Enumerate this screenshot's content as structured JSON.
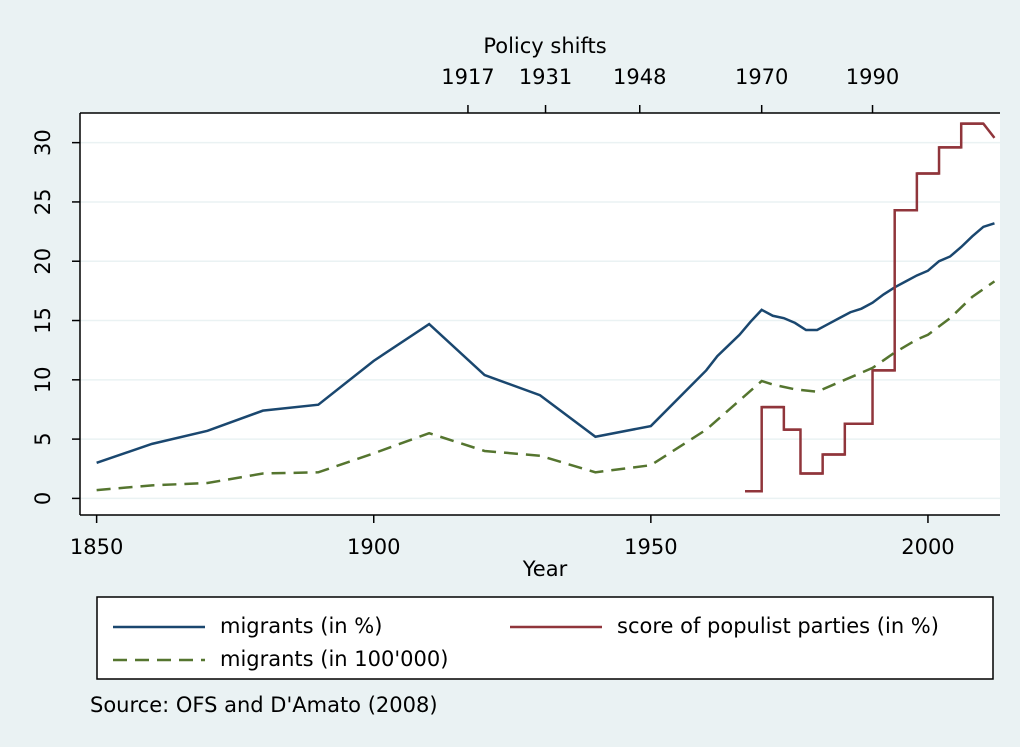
{
  "chart_data": {
    "type": "line",
    "xlabel": "Year",
    "top_axis_title": "Policy shifts",
    "xlim": [
      1847,
      2013
    ],
    "xticks": [
      1850,
      1900,
      1950,
      2000
    ],
    "top_xticks": [
      1917,
      1931,
      1948,
      1970,
      1990
    ],
    "ylim": [
      -1.4,
      32.5
    ],
    "yticks": [
      0,
      5,
      10,
      15,
      20,
      25,
      30
    ],
    "grid": true,
    "note": "Source: OFS and D'Amato (2008)",
    "series": [
      {
        "name": "migrants (in %)",
        "color": "#1a476f",
        "dash": "solid",
        "x": [
          1850,
          1860,
          1870,
          1880,
          1890,
          1900,
          1910,
          1920,
          1930,
          1940,
          1950,
          1960,
          1962,
          1964,
          1966,
          1968,
          1970,
          1972,
          1974,
          1976,
          1978,
          1980,
          1982,
          1984,
          1986,
          1988,
          1990,
          1992,
          1994,
          1996,
          1998,
          2000,
          2002,
          2004,
          2006,
          2008,
          2010,
          2012
        ],
        "values": [
          3.0,
          4.6,
          5.7,
          7.4,
          7.9,
          11.6,
          14.7,
          10.4,
          8.7,
          5.2,
          6.1,
          10.8,
          12.0,
          12.9,
          13.8,
          14.9,
          15.9,
          15.4,
          15.2,
          14.8,
          14.2,
          14.2,
          14.7,
          15.2,
          15.7,
          16.0,
          16.5,
          17.2,
          17.8,
          18.3,
          18.8,
          19.2,
          20.0,
          20.4,
          21.2,
          22.1,
          22.9,
          23.2
        ]
      },
      {
        "name": "score of populist parties (in %)",
        "color": "#90353b",
        "dash": "solid",
        "step": true,
        "x": [
          1967,
          1970,
          1974,
          1977,
          1981,
          1985,
          1990,
          1994,
          1998,
          2002,
          2006,
          2010,
          2012
        ],
        "values": [
          0.6,
          7.7,
          5.8,
          2.1,
          3.7,
          6.3,
          10.8,
          24.3,
          27.4,
          29.6,
          31.6,
          31.6,
          30.4
        ]
      },
      {
        "name": "migrants (in 100'000)",
        "color": "#55752f",
        "dash": "dashed",
        "x": [
          1850,
          1860,
          1870,
          1880,
          1890,
          1900,
          1910,
          1920,
          1930,
          1940,
          1950,
          1960,
          1970,
          1972,
          1976,
          1980,
          1984,
          1988,
          1990,
          1994,
          1998,
          2000,
          2004,
          2008,
          2012
        ],
        "values": [
          0.7,
          1.1,
          1.3,
          2.1,
          2.2,
          3.8,
          5.5,
          4.0,
          3.6,
          2.2,
          2.8,
          5.8,
          9.9,
          9.6,
          9.2,
          9.0,
          9.8,
          10.6,
          11.0,
          12.3,
          13.4,
          13.8,
          15.2,
          17.0,
          18.3
        ]
      }
    ]
  }
}
